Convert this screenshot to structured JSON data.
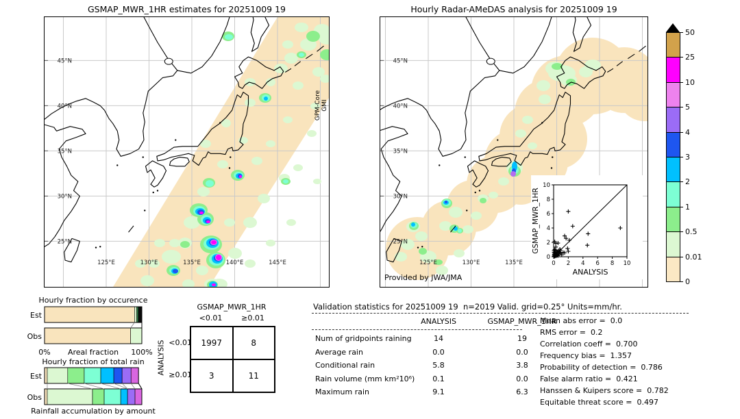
{
  "left_map": {
    "title": "GSMAP_MWR_1HR estimates for 20251009 19",
    "side_label_line1": "GPM-Core",
    "side_label_line2": "GMI",
    "lat_ticks": [
      "45°N",
      "40°N",
      "35°N",
      "30°N",
      "25°N"
    ],
    "lon_ticks": [
      "125°E",
      "130°E",
      "135°E",
      "140°E",
      "145°E"
    ]
  },
  "right_map": {
    "title": "Hourly Radar-AMeDAS analysis for 20251009 19",
    "credit": "Provided by JWA/JMA",
    "lat_ticks": [
      "45°N",
      "40°N",
      "35°N",
      "30°N",
      "25°N"
    ],
    "lon_ticks": [
      "125°E",
      "130°E",
      "135°E"
    ]
  },
  "colorbar": {
    "tick_labels": [
      "50",
      "25",
      "10",
      "5",
      "4",
      "3",
      "2",
      "1",
      "0.5",
      "0.01",
      "0"
    ],
    "segment_colors_top_to_bottom": [
      "#d2a24b",
      "#ff00ff",
      "#ee82ee",
      "#9b6cf6",
      "#1e56f0",
      "#00c0ff",
      "#7dffd4",
      "#8cee8c",
      "#dcf8d2",
      "#fbe8c4"
    ],
    "overflow_color": "#000000"
  },
  "occurrence": {
    "title": "Hourly fraction by occurence",
    "row_labels": [
      "Est",
      "Obs"
    ],
    "axis_left": "0%",
    "axis_center": "Areal fraction",
    "axis_right": "100%",
    "est_segments": [
      {
        "color": "#f9e4bd",
        "pct": 92.5
      },
      {
        "color": "#dcf8d2",
        "pct": 2.3
      },
      {
        "color": "#2f7d46",
        "pct": 1.7
      },
      {
        "color": "#0a0a0a",
        "pct": 3.5
      }
    ],
    "obs_segments": [
      {
        "color": "#f9e4bd",
        "pct": 88.5
      },
      {
        "color": "#dcf8d2",
        "pct": 11.5
      }
    ]
  },
  "totalrain": {
    "title": "Hourly fraction of total rain",
    "caption": "Rainfall accumulation by amount",
    "row_labels": [
      "Est",
      "Obs"
    ],
    "est_segments": [
      {
        "color": "#f9e4bd",
        "pct": 2.8
      },
      {
        "color": "#dcf8d2",
        "pct": 21.0
      },
      {
        "color": "#8cee8c",
        "pct": 17.0
      },
      {
        "color": "#7dffd4",
        "pct": 17.0
      },
      {
        "color": "#00c0ff",
        "pct": 13.4
      },
      {
        "color": "#1e56f0",
        "pct": 8.5
      },
      {
        "color": "#9b6cf6",
        "pct": 9.2
      },
      {
        "color": "#d966e0",
        "pct": 7.7
      }
    ],
    "obs_segments": [
      {
        "color": "#f9e4bd",
        "pct": 2.8
      },
      {
        "color": "#dcf8d2",
        "pct": 46.5
      },
      {
        "color": "#8cee8c",
        "pct": 12.0
      },
      {
        "color": "#7dffd4",
        "pct": 17.0
      },
      {
        "color": "#00c0ff",
        "pct": 7.0
      },
      {
        "color": "#9b6cf6",
        "pct": 7.7
      },
      {
        "color": "#d966e0",
        "pct": 7.0
      }
    ]
  },
  "contingency": {
    "col_title": "GSMAP_MWR_1HR",
    "row_title": "ANALYSIS",
    "col_labels": [
      "<0.01",
      "≥0.01"
    ],
    "row_labels": [
      "<0.01",
      "≥0.01"
    ],
    "values": [
      [
        "1997",
        "8"
      ],
      [
        "3",
        "11"
      ]
    ]
  },
  "validation": {
    "title": "Validation statistics for 20251009 19  n=2019 Valid. grid=0.25° Units=mm/hr.",
    "col_headers": [
      "ANALYSIS",
      "GSMAP_MWR_1HR"
    ],
    "rows": [
      {
        "label": "Num of gridpoints raining",
        "analysis": "14",
        "gsmap": "19"
      },
      {
        "label": "Average rain",
        "analysis": "0.0",
        "gsmap": "0.0"
      },
      {
        "label": "Conditional rain",
        "analysis": "5.8",
        "gsmap": "3.8"
      },
      {
        "label": "Rain volume (mm km²10⁶)",
        "analysis": "0.1",
        "gsmap": "0.0"
      },
      {
        "label": "Maximum rain",
        "analysis": "9.1",
        "gsmap": "6.3"
      }
    ],
    "scores": [
      {
        "label": "Mean abs error =",
        "value": "0.0"
      },
      {
        "label": "RMS error =",
        "value": "0.2"
      },
      {
        "label": "Correlation coeff =",
        "value": "0.700"
      },
      {
        "label": "Frequency bias =",
        "value": "1.357"
      },
      {
        "label": "Probability of detection =",
        "value": "0.786"
      },
      {
        "label": "False alarm ratio =",
        "value": "0.421"
      },
      {
        "label": "Hanssen & Kuipers score =",
        "value": "0.782"
      },
      {
        "label": "Equitable threat score =",
        "value": "0.497"
      }
    ]
  },
  "scatter": {
    "xlabel": "ANALYSIS",
    "ylabel": "GSMAP_MWR_1HR",
    "tick_labels": [
      "0",
      "2",
      "4",
      "6",
      "8",
      "10"
    ]
  },
  "chart_data": [
    {
      "type": "heatmap",
      "name": "gsmap_estimate_map",
      "title": "GSMAP_MWR_1HR estimates for 20251009 19",
      "x_ticks": [
        "125°E",
        "130°E",
        "135°E",
        "140°E",
        "145°E"
      ],
      "y_ticks": [
        "45°N",
        "40°N",
        "35°N",
        "30°N",
        "25°N"
      ],
      "scale_levels_mm_hr": [
        0,
        0.01,
        0.5,
        1,
        2,
        3,
        4,
        5,
        10,
        25,
        50
      ],
      "annotation": "GPM-Core GMI"
    },
    {
      "type": "heatmap",
      "name": "radar_amedas_map",
      "title": "Hourly Radar-AMeDAS analysis for 20251009 19",
      "x_ticks": [
        "125°E",
        "130°E",
        "135°E"
      ],
      "y_ticks": [
        "45°N",
        "40°N",
        "35°N",
        "30°N",
        "25°N"
      ],
      "scale_levels_mm_hr": [
        0,
        0.01,
        0.5,
        1,
        2,
        3,
        4,
        5,
        10,
        25,
        50
      ],
      "credit": "Provided by JWA/JMA"
    },
    {
      "type": "bar",
      "name": "hourly_fraction_by_occurence",
      "title": "Hourly fraction by occurence",
      "categories": [
        "Est",
        "Obs"
      ],
      "xlabel": "Areal fraction",
      "xlim": [
        "0%",
        "100%"
      ],
      "series": [
        {
          "name": "Est",
          "segments_pct": [
            92.5,
            2.3,
            1.7,
            3.5
          ]
        },
        {
          "name": "Obs",
          "segments_pct": [
            88.5,
            11.5
          ]
        }
      ]
    },
    {
      "type": "bar",
      "name": "hourly_fraction_of_total_rain",
      "title": "Hourly fraction of total rain",
      "caption": "Rainfall accumulation by amount",
      "categories": [
        "Est",
        "Obs"
      ],
      "series": [
        {
          "name": "Est",
          "segments_pct": [
            2.8,
            21.0,
            17.0,
            17.0,
            13.4,
            8.5,
            9.2,
            7.7
          ]
        },
        {
          "name": "Obs",
          "segments_pct": [
            2.8,
            46.5,
            12.0,
            17.0,
            7.0,
            7.7,
            7.0
          ]
        }
      ]
    },
    {
      "type": "table",
      "name": "contingency_table",
      "col_group": "GSMAP_MWR_1HR",
      "row_group": "ANALYSIS",
      "cols": [
        "<0.01",
        "≥0.01"
      ],
      "rows": [
        "<0.01",
        "≥0.01"
      ],
      "values": [
        [
          1997,
          8
        ],
        [
          3,
          11
        ]
      ]
    },
    {
      "type": "table",
      "name": "validation_statistics",
      "title": "Validation statistics for 20251009 19  n=2019 Valid. grid=0.25° Units=mm/hr.",
      "columns": [
        "ANALYSIS",
        "GSMAP_MWR_1HR"
      ],
      "rows": [
        [
          "Num of gridpoints raining",
          14,
          19
        ],
        [
          "Average rain",
          0.0,
          0.0
        ],
        [
          "Conditional rain",
          5.8,
          3.8
        ],
        [
          "Rain volume (mm km²10⁶)",
          0.1,
          0.0
        ],
        [
          "Maximum rain",
          9.1,
          6.3
        ]
      ],
      "scores": {
        "Mean abs error": 0.0,
        "RMS error": 0.2,
        "Correlation coeff": 0.7,
        "Frequency bias": 1.357,
        "Probability of detection": 0.786,
        "False alarm ratio": 0.421,
        "Hanssen & Kuipers score": 0.782,
        "Equitable threat score": 0.497
      }
    },
    {
      "type": "scatter",
      "name": "gsmap_vs_analysis",
      "xlabel": "ANALYSIS",
      "ylabel": "GSMAP_MWR_1HR",
      "xlim": [
        0,
        10
      ],
      "ylim": [
        0,
        10
      ],
      "diagonal": true,
      "points": [
        [
          0.05,
          0.05
        ],
        [
          0.1,
          0.1
        ],
        [
          0.15,
          0.05
        ],
        [
          0.05,
          0.25
        ],
        [
          0.2,
          0.15
        ],
        [
          0.1,
          0.35
        ],
        [
          0.3,
          0.1
        ],
        [
          0.25,
          0.3
        ],
        [
          0.35,
          0.2
        ],
        [
          0.15,
          0.5
        ],
        [
          0.4,
          0.4
        ],
        [
          0.45,
          0.15
        ],
        [
          0.05,
          0.6
        ],
        [
          0.05,
          0.85
        ],
        [
          0.25,
          0.6
        ],
        [
          0.55,
          0.3
        ],
        [
          0.6,
          0.15
        ],
        [
          0.5,
          0.55
        ],
        [
          0.7,
          0.4
        ],
        [
          0.5,
          0.7
        ],
        [
          0.65,
          0.8
        ],
        [
          0.8,
          0.6
        ],
        [
          0.3,
          0.9
        ],
        [
          0.15,
          1.0
        ],
        [
          0.9,
          0.9
        ],
        [
          1.0,
          0.5
        ],
        [
          1.1,
          0.25
        ],
        [
          1.3,
          0.6
        ],
        [
          1.5,
          0.55
        ],
        [
          1.9,
          1.15
        ],
        [
          2.0,
          0.75
        ],
        [
          0.15,
          2.1
        ],
        [
          0.3,
          1.85
        ],
        [
          0.6,
          1.9
        ],
        [
          0.3,
          1.35
        ],
        [
          0.85,
          1.05
        ],
        [
          1.5,
          2.9
        ],
        [
          1.7,
          2.55
        ],
        [
          2.0,
          6.3
        ],
        [
          2.15,
          2.3
        ],
        [
          2.6,
          4.25
        ],
        [
          4.7,
          3.2
        ],
        [
          4.6,
          1.6
        ],
        [
          9.1,
          4.0
        ]
      ]
    }
  ]
}
